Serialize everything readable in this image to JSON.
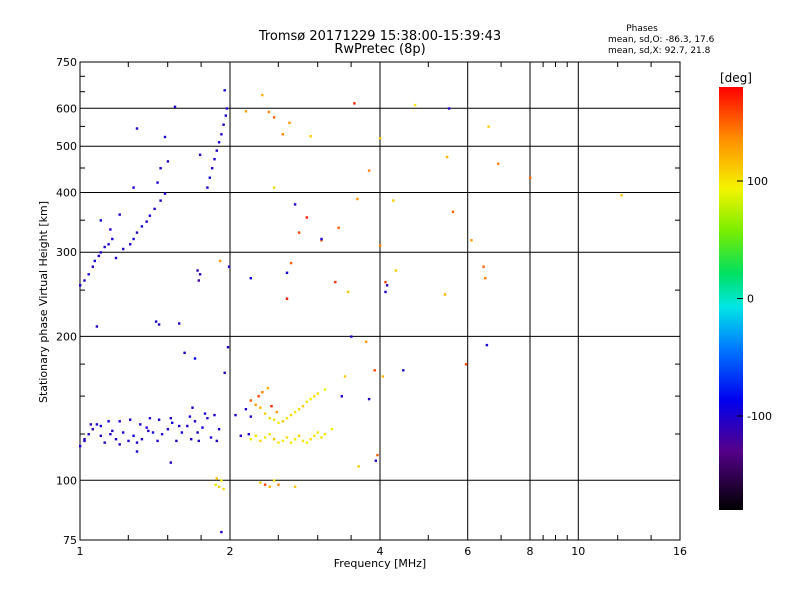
{
  "header": {
    "title": "Tromsø 20171229 15:38:00-15:39:43",
    "subtitle": "RwPretec (8p)"
  },
  "stats": {
    "heading": "Phases",
    "line_o": "mean, sd,O: -86.3, 17.6",
    "line_x": "mean, sd,X:  92.7, 21.8"
  },
  "colorbar": {
    "label": "[deg]",
    "ticks": [
      "100",
      "0",
      "-100"
    ],
    "tick_values": [
      100,
      0,
      -100
    ],
    "range": [
      -180,
      180
    ]
  },
  "chart_data": {
    "type": "scatter",
    "title": "Tromsø 20171229 15:38:00-15:39:43",
    "subtitle": "RwPretec (8p)",
    "xlabel": "Frequency [MHz]",
    "ylabel": "Stationary phase Virtual Height [km]",
    "xscale": "log",
    "yscale": "log",
    "xlim": [
      1,
      16
    ],
    "ylim": [
      75,
      750
    ],
    "xticks": [
      1,
      2,
      4,
      6,
      8,
      10,
      16
    ],
    "xtick_labels": [
      "1",
      "2",
      "4",
      "6",
      "8",
      "10",
      "16"
    ],
    "xgrid_lines": [
      2,
      4,
      6,
      8,
      10
    ],
    "xminor_ticks": [
      1.25,
      1.5,
      1.75,
      2.5,
      3,
      3.5,
      5,
      7,
      8.5,
      9,
      9.5,
      12,
      14
    ],
    "yticks": [
      75,
      100,
      200,
      300,
      400,
      500,
      600,
      750
    ],
    "ytick_labels": [
      "75",
      "100",
      "200",
      "300",
      "400",
      "500",
      "600",
      "750"
    ],
    "ygrid_lines": [
      100,
      200,
      300,
      400,
      500,
      600
    ],
    "yminor_ticks": [
      125,
      150,
      175,
      250,
      350,
      450,
      550,
      650,
      700
    ],
    "grid": true,
    "color_scale": "phase [deg], -180 to 180",
    "series": [
      {
        "values_format": "[frequency MHz, virtual height km, phase deg]",
        "points": [
          [
            1.0,
            118,
            -100
          ],
          [
            1.02,
            121,
            -104
          ],
          [
            1.04,
            125,
            -98
          ],
          [
            1.06,
            128,
            -110
          ],
          [
            1.08,
            131,
            -96
          ],
          [
            1.1,
            124,
            -101
          ],
          [
            1.12,
            120,
            -107
          ],
          [
            1.14,
            133,
            -95
          ],
          [
            1.16,
            127,
            -103
          ],
          [
            1.18,
            122,
            -99
          ],
          [
            1.2,
            119,
            -105
          ],
          [
            1.22,
            126,
            -97
          ],
          [
            1.25,
            121,
            -101
          ],
          [
            1.28,
            124,
            -93
          ],
          [
            1.3,
            120,
            -100
          ],
          [
            1.33,
            122,
            -106
          ],
          [
            1.36,
            129,
            -98
          ],
          [
            1.38,
            135,
            -100
          ],
          [
            1.4,
            126,
            -94
          ],
          [
            1.43,
            121,
            -103
          ],
          [
            1.46,
            125,
            -99
          ],
          [
            1.5,
            128,
            -101
          ],
          [
            1.53,
            132,
            -97
          ],
          [
            1.56,
            121,
            -104
          ],
          [
            1.6,
            126,
            -96
          ],
          [
            1.64,
            130,
            -100
          ],
          [
            1.67,
            122,
            -102
          ],
          [
            1.7,
            133,
            -98
          ],
          [
            1.73,
            121,
            -105
          ],
          [
            1.76,
            129,
            -95
          ],
          [
            1.8,
            135,
            -100
          ],
          [
            1.83,
            123,
            -98
          ],
          [
            1.86,
            137,
            -102
          ],
          [
            1.9,
            128,
            -97
          ],
          [
            1.02,
            122,
            -108
          ],
          [
            1.05,
            131,
            -112
          ],
          [
            1.1,
            130,
            -95
          ],
          [
            1.15,
            125,
            -99
          ],
          [
            1.2,
            133,
            -97
          ],
          [
            1.26,
            134,
            -102
          ],
          [
            1.32,
            131,
            -96
          ],
          [
            1.37,
            127,
            -104
          ],
          [
            1.44,
            134,
            -98
          ],
          [
            1.52,
            135,
            -101
          ],
          [
            1.58,
            130,
            -99
          ],
          [
            1.66,
            136,
            -97
          ],
          [
            1.72,
            126,
            -100
          ],
          [
            1.78,
            138,
            -96
          ],
          [
            1.88,
            121,
            -103
          ],
          [
            2.05,
            137,
            -98
          ],
          [
            2.1,
            124,
            -104
          ],
          [
            2.15,
            141,
            -102
          ],
          [
            2.2,
            136,
            -101
          ],
          [
            1.0,
            256,
            -100
          ],
          [
            1.02,
            262,
            -103
          ],
          [
            1.04,
            270,
            -97
          ],
          [
            1.06,
            280,
            -101
          ],
          [
            1.07,
            288,
            -95
          ],
          [
            1.09,
            295,
            -100
          ],
          [
            1.1,
            300,
            -104
          ],
          [
            1.12,
            308,
            -98
          ],
          [
            1.14,
            312,
            -101
          ],
          [
            1.16,
            320,
            -96
          ],
          [
            1.18,
            292,
            -103
          ],
          [
            1.22,
            305,
            -99
          ],
          [
            1.26,
            312,
            -100
          ],
          [
            1.28,
            320,
            -97
          ],
          [
            1.3,
            330,
            -105
          ],
          [
            1.33,
            340,
            -98
          ],
          [
            1.36,
            348,
            -100
          ],
          [
            1.38,
            358,
            -96
          ],
          [
            1.41,
            370,
            -101
          ],
          [
            1.45,
            385,
            -99
          ],
          [
            1.48,
            398,
            -103
          ],
          [
            1.43,
            420,
            -97
          ],
          [
            1.45,
            450,
            -100
          ],
          [
            1.5,
            465,
            -104
          ],
          [
            1.28,
            410,
            -98
          ],
          [
            1.3,
            545,
            -101
          ],
          [
            1.48,
            523,
            -97
          ],
          [
            1.55,
            605,
            -100
          ],
          [
            1.1,
            350,
            -96
          ],
          [
            1.15,
            335,
            -102
          ],
          [
            1.2,
            360,
            -99
          ],
          [
            1.08,
            210,
            -100
          ],
          [
            1.42,
            215,
            -98
          ],
          [
            1.44,
            212,
            -103
          ],
          [
            1.58,
            213,
            -101
          ],
          [
            1.72,
            275,
            -115
          ],
          [
            1.73,
            262,
            -120
          ],
          [
            1.74,
            270,
            -108
          ],
          [
            1.8,
            410,
            -100
          ],
          [
            1.82,
            430,
            -97
          ],
          [
            1.84,
            450,
            -103
          ],
          [
            1.86,
            470,
            -99
          ],
          [
            1.88,
            490,
            -101
          ],
          [
            1.9,
            510,
            -96
          ],
          [
            1.92,
            530,
            -100
          ],
          [
            1.94,
            555,
            -104
          ],
          [
            1.96,
            580,
            -98
          ],
          [
            1.97,
            600,
            -101
          ],
          [
            1.95,
            655,
            -95
          ],
          [
            1.74,
            480,
            -110
          ],
          [
            1.99,
            280,
            -103
          ],
          [
            1.98,
            190,
            -100
          ],
          [
            1.95,
            168,
            -108
          ],
          [
            1.92,
            78,
            -105
          ],
          [
            1.62,
            185,
            -98
          ],
          [
            1.7,
            180,
            -88
          ],
          [
            1.87,
            98,
            100
          ],
          [
            1.9,
            97,
            110
          ],
          [
            1.92,
            100,
            95
          ],
          [
            1.88,
            101,
            115
          ],
          [
            1.94,
            96,
            105
          ],
          [
            1.91,
            288,
            130
          ],
          [
            2.2,
            147,
            150
          ],
          [
            2.25,
            144,
            130
          ],
          [
            2.3,
            142,
            120
          ],
          [
            2.35,
            138,
            110
          ],
          [
            2.4,
            135,
            105
          ],
          [
            2.45,
            134,
            100
          ],
          [
            2.5,
            132,
            95
          ],
          [
            2.55,
            133,
            110
          ],
          [
            2.6,
            135,
            100
          ],
          [
            2.65,
            137,
            105
          ],
          [
            2.7,
            139,
            98
          ],
          [
            2.75,
            141,
            102
          ],
          [
            2.8,
            143,
            110
          ],
          [
            2.85,
            146,
            100
          ],
          [
            2.9,
            148,
            95
          ],
          [
            2.95,
            150,
            105
          ],
          [
            3.0,
            152,
            100
          ],
          [
            3.1,
            155,
            90
          ],
          [
            2.28,
            150,
            160
          ],
          [
            2.32,
            153,
            140
          ],
          [
            2.38,
            156,
            120
          ],
          [
            2.42,
            143,
            170
          ],
          [
            2.48,
            139,
            130
          ],
          [
            2.2,
            122,
            95
          ],
          [
            2.25,
            124,
            100
          ],
          [
            2.3,
            121,
            105
          ],
          [
            2.35,
            123,
            98
          ],
          [
            2.4,
            125,
            102
          ],
          [
            2.45,
            122,
            110
          ],
          [
            2.5,
            120,
            100
          ],
          [
            2.55,
            121,
            96
          ],
          [
            2.6,
            123,
            104
          ],
          [
            2.65,
            120,
            100
          ],
          [
            2.7,
            122,
            98
          ],
          [
            2.75,
            124,
            106
          ],
          [
            2.8,
            121,
            100
          ],
          [
            2.85,
            120,
            94
          ],
          [
            2.9,
            122,
            102
          ],
          [
            2.95,
            124,
            100
          ],
          [
            3.0,
            126,
            98
          ],
          [
            3.05,
            123,
            104
          ],
          [
            3.1,
            125,
            100
          ],
          [
            3.2,
            128,
            95
          ],
          [
            2.3,
            99,
            110
          ],
          [
            2.35,
            98,
            160
          ],
          [
            2.4,
            97,
            120
          ],
          [
            2.45,
            100,
            100
          ],
          [
            2.5,
            98,
            140
          ],
          [
            2.7,
            97,
            110
          ],
          [
            2.32,
            640,
            120
          ],
          [
            2.39,
            590,
            140
          ],
          [
            2.45,
            575,
            150
          ],
          [
            2.63,
            560,
            130
          ],
          [
            2.9,
            525,
            110
          ],
          [
            3.3,
            338,
            150
          ],
          [
            3.55,
            615,
            170
          ],
          [
            3.6,
            388,
            130
          ],
          [
            3.8,
            445,
            140
          ],
          [
            4.0,
            520,
            115
          ],
          [
            4.1,
            260,
            160
          ],
          [
            4.25,
            385,
            110
          ],
          [
            4.7,
            610,
            100
          ],
          [
            5.45,
            475,
            120
          ],
          [
            5.6,
            365,
            150
          ],
          [
            6.1,
            318,
            130
          ],
          [
            6.6,
            550,
            110
          ],
          [
            6.9,
            460,
            140
          ],
          [
            8.0,
            430,
            150
          ],
          [
            12.2,
            395,
            115
          ],
          [
            2.65,
            285,
            150
          ],
          [
            2.75,
            330,
            160
          ],
          [
            2.85,
            355,
            170
          ],
          [
            3.05,
            318,
            155
          ],
          [
            3.25,
            260,
            165
          ],
          [
            3.45,
            248,
            110
          ],
          [
            2.6,
            240,
            175
          ],
          [
            2.45,
            410,
            105
          ],
          [
            2.55,
            530,
            140
          ],
          [
            2.15,
            592,
            130
          ],
          [
            4.0,
            310,
            140
          ],
          [
            4.05,
            165,
            120
          ],
          [
            3.9,
            170,
            160
          ],
          [
            3.75,
            195,
            130
          ],
          [
            3.4,
            165,
            110
          ],
          [
            3.62,
            107,
            110
          ],
          [
            3.95,
            113,
            150
          ],
          [
            4.3,
            275,
            110
          ],
          [
            5.95,
            175,
            160
          ],
          [
            6.45,
            280,
            150
          ],
          [
            6.5,
            265,
            140
          ],
          [
            5.4,
            245,
            120
          ],
          [
            2.2,
            265,
            -90
          ],
          [
            2.6,
            272,
            -95
          ],
          [
            2.7,
            378,
            -100
          ],
          [
            3.05,
            320,
            -98
          ],
          [
            3.5,
            200,
            -102
          ],
          [
            4.1,
            248,
            -100
          ],
          [
            4.13,
            256,
            -104
          ],
          [
            4.45,
            170,
            -96
          ],
          [
            5.5,
            600,
            -100
          ],
          [
            6.55,
            192,
            -95
          ],
          [
            3.8,
            148,
            -100
          ],
          [
            3.92,
            110,
            -102
          ],
          [
            3.35,
            150,
            -98
          ],
          [
            2.18,
            125,
            -104
          ],
          [
            1.3,
            115,
            -96
          ],
          [
            1.68,
            142,
            -100
          ],
          [
            1.52,
            109,
            -103
          ]
        ]
      }
    ]
  }
}
